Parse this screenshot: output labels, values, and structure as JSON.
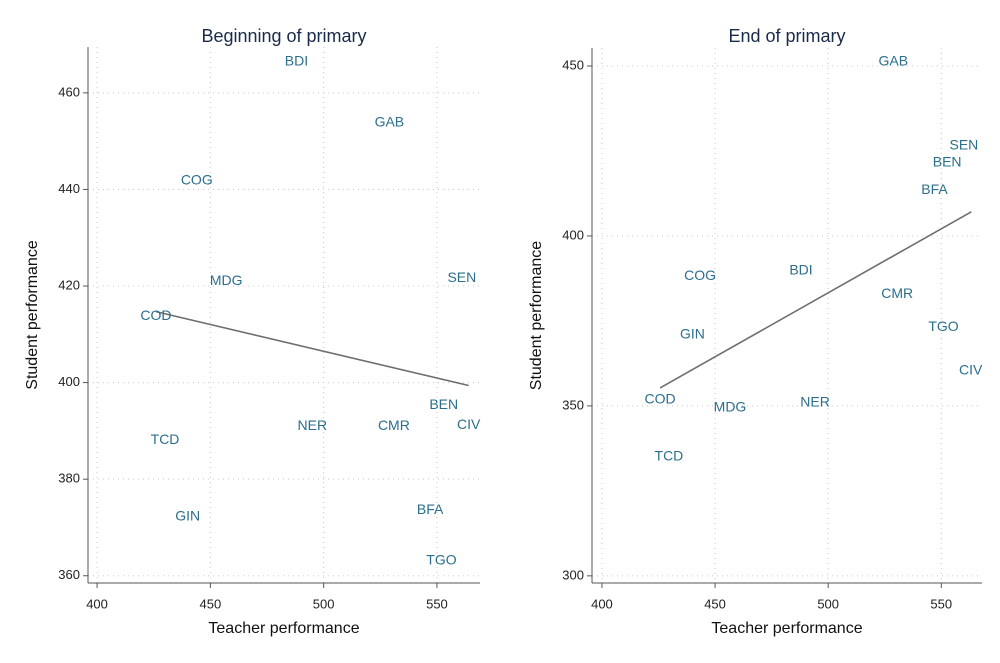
{
  "chart_data": [
    {
      "type": "scatter",
      "title": "Beginning of primary",
      "x_label": "Teacher performance",
      "y_label": "Student performance",
      "xlim": [
        396,
        569
      ],
      "ylim": [
        358.5,
        469.5
      ],
      "xticks": [
        400,
        450,
        500,
        550
      ],
      "yticks": [
        360,
        380,
        400,
        420,
        440,
        460
      ],
      "grid": true,
      "label_color": "#2b6f8c",
      "line_color": "#6e6e6e",
      "labels": [
        "BDI",
        "GAB",
        "COG",
        "MDG",
        "SEN",
        "COD",
        "BEN",
        "CIV",
        "NER",
        "CMR",
        "TCD",
        "GIN",
        "BFA",
        "TGO"
      ],
      "x": [
        488,
        529,
        444,
        457,
        561,
        426,
        553,
        564,
        495,
        531,
        430,
        440,
        547,
        552
      ],
      "y": [
        466.4,
        453.8,
        441.8,
        421,
        421.6,
        413.7,
        395.3,
        391.2,
        391,
        391,
        388.1,
        372.2,
        373.6,
        363.1
      ],
      "fit_line": {
        "x": [
          426,
          564
        ],
        "y": [
          414.7,
          399.4
        ]
      }
    },
    {
      "type": "scatter",
      "title": "End of primary",
      "x_label": "Teacher performance",
      "y_label": "Student performance",
      "xlim": [
        395.6,
        568
      ],
      "ylim": [
        297.9,
        455.3
      ],
      "xticks": [
        400,
        450,
        500,
        550
      ],
      "yticks": [
        300,
        350,
        400,
        450
      ],
      "grid": true,
      "label_color": "#2b6f8c",
      "line_color": "#6e6e6e",
      "labels": [
        "GAB",
        "SEN",
        "BEN",
        "BFA",
        "BDI",
        "COG",
        "CMR",
        "GIN",
        "TGO",
        "CIV",
        "COD",
        "MDG",
        "NER",
        "TCD"
      ],
      "x": [
        528.8,
        560,
        552.6,
        547,
        488,
        443.4,
        530.5,
        440,
        551,
        563,
        425.7,
        456.6,
        494.2,
        429.6
      ],
      "y": [
        451.2,
        426.5,
        421.5,
        413.5,
        389.7,
        388.2,
        382.9,
        370.9,
        373.2,
        360.3,
        351.8,
        349.4,
        350.9,
        335
      ],
      "fit_line": {
        "x": [
          425.7,
          563.3
        ],
        "y": [
          355.3,
          407.1
        ]
      }
    }
  ]
}
